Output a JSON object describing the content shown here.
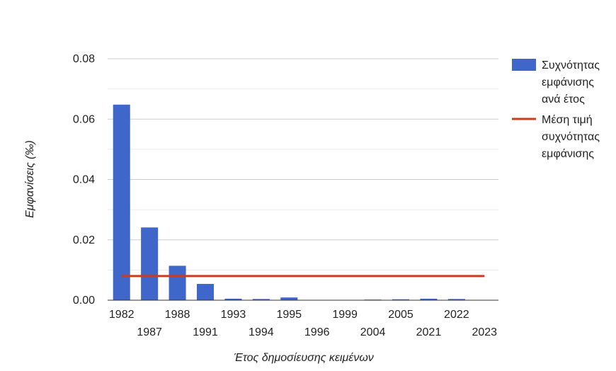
{
  "chart_data": {
    "type": "bar",
    "title": "",
    "xlabel": "Έτος δημοσίευσης κειμένων",
    "ylabel": "Εμφανίσεις (‰)",
    "ylim": [
      0,
      0.08
    ],
    "yticks": [
      "0.00",
      "0.02",
      "0.04",
      "0.06",
      "0.08"
    ],
    "grid": true,
    "legend_position": "right",
    "categories": [
      "1982",
      "1987",
      "1988",
      "1991",
      "1993",
      "1994",
      "1995",
      "1996",
      "1999",
      "2004",
      "2005",
      "2021",
      "2022",
      "2023"
    ],
    "series": [
      {
        "name": "Συχνότητας εμφάνισης ανά έτος",
        "legend_lines": [
          "Συχνότητας",
          "εμφάνισης",
          "ανά έτος"
        ],
        "kind": "bar",
        "color": "#3f66c9",
        "values": [
          0.0648,
          0.0241,
          0.0114,
          0.0054,
          0.0005,
          0.0004,
          0.0009,
          0.0001,
          0.0001,
          0.0002,
          0.0003,
          0.0005,
          0.0004,
          0.0001
        ]
      },
      {
        "name": "Μέση τιμή συχνότητας εμφάνισης",
        "legend_lines": [
          "Μέση τιμή",
          "συχνότητας",
          "εμφάνισης"
        ],
        "kind": "line",
        "color": "#cc3b1b",
        "value": 0.008
      }
    ]
  }
}
